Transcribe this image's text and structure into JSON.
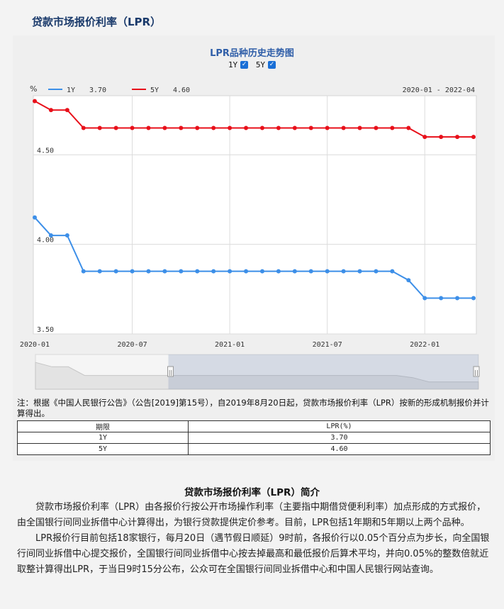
{
  "page_title": "贷款市场报价利率（LPR）",
  "chart_data": {
    "type": "line",
    "title": "LPR品种历史走势图",
    "unit": "%",
    "range_label": "2020-01 - 2022-04",
    "x": [
      "2020-01",
      "2020-02",
      "2020-03",
      "2020-04",
      "2020-05",
      "2020-06",
      "2020-07",
      "2020-08",
      "2020-09",
      "2020-10",
      "2020-11",
      "2020-12",
      "2021-01",
      "2021-02",
      "2021-03",
      "2021-04",
      "2021-05",
      "2021-06",
      "2021-07",
      "2021-08",
      "2021-09",
      "2021-10",
      "2021-11",
      "2021-12",
      "2022-01",
      "2022-02",
      "2022-03",
      "2022-04"
    ],
    "xticks": [
      "2020-01",
      "2020-07",
      "2021-01",
      "2021-07",
      "2022-01"
    ],
    "yticks": [
      "3.50",
      "4.00",
      "4.50"
    ],
    "ylim": [
      3.5,
      4.83
    ],
    "grid": true,
    "series": [
      {
        "name": "1Y",
        "color": "#3d8fe8",
        "latest": "3.70",
        "values": [
          4.15,
          4.05,
          4.05,
          3.85,
          3.85,
          3.85,
          3.85,
          3.85,
          3.85,
          3.85,
          3.85,
          3.85,
          3.85,
          3.85,
          3.85,
          3.85,
          3.85,
          3.85,
          3.85,
          3.85,
          3.85,
          3.85,
          3.85,
          3.8,
          3.7,
          3.7,
          3.7,
          3.7
        ]
      },
      {
        "name": "5Y",
        "color": "#e8101a",
        "latest": "4.60",
        "values": [
          4.8,
          4.75,
          4.75,
          4.65,
          4.65,
          4.65,
          4.65,
          4.65,
          4.65,
          4.65,
          4.65,
          4.65,
          4.65,
          4.65,
          4.65,
          4.65,
          4.65,
          4.65,
          4.65,
          4.65,
          4.65,
          4.65,
          4.65,
          4.65,
          4.6,
          4.6,
          4.6,
          4.6
        ]
      }
    ],
    "legend_position": "top-left"
  },
  "toggles": [
    {
      "label": "1Y",
      "checked": true
    },
    {
      "label": "5Y",
      "checked": true
    }
  ],
  "navigator": {
    "range_start": 0.3,
    "range_end": 1.0,
    "handle_glyph": "||"
  },
  "note": "注：根据《中国人民银行公告》（公告[2019]第15号），自2019年8月20日起，贷款市场报价利率（LPR）按新的形成机制报价并计算得出。",
  "table": {
    "headers": [
      "期限",
      "LPR(%)"
    ],
    "rows": [
      [
        "1Y",
        "3.70"
      ],
      [
        "5Y",
        "4.60"
      ]
    ]
  },
  "intro": {
    "title": "贷款市场报价利率（LPR）简介",
    "paragraphs": [
      "贷款市场报价利率（LPR）由各报价行按公开市场操作利率（主要指中期借贷便利利率）加点形成的方式报价，由全国银行间同业拆借中心计算得出，为银行贷款提供定价参考。目前，LPR包括1年期和5年期以上两个品种。",
      "LPR报价行目前包括18家银行，每月20日（遇节假日顺延）9时前，各报价行以0.05个百分点为步长，向全国银行间同业拆借中心提交报价，全国银行间同业拆借中心按去掉最高和最低报价后算术平均，并向0.05%的整数倍就近取整计算得出LPR，于当日9时15分公布，公众可在全国银行间同业拆借中心和中国人民银行网站查询。"
    ]
  }
}
